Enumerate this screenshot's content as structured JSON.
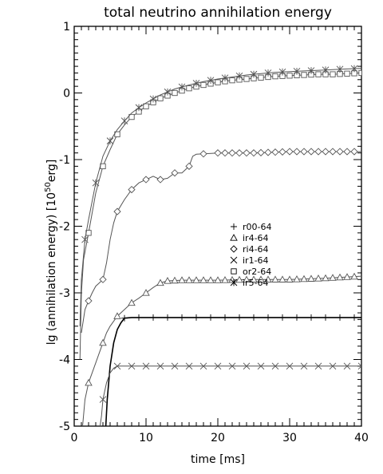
{
  "chart_data": {
    "type": "line",
    "title": "total neutrino annihilation energy",
    "xlabel": "time [ms]",
    "ylabel_prefix": "lg (annihilation energy) [10",
    "ylabel_sup": "50",
    "ylabel_suffix": "erg]",
    "xlim": [
      0,
      40
    ],
    "ylim": [
      -5,
      1
    ],
    "x_ticks": [
      "0",
      "10",
      "20",
      "30",
      "40"
    ],
    "y_ticks": [
      "-5",
      "-4",
      "-3",
      "-2",
      "-1",
      "0",
      "1"
    ],
    "grid": false,
    "legend_position": "center-right",
    "series": [
      {
        "name": "r00-64",
        "marker": "plus",
        "color": "#000000",
        "line_width": 1.6,
        "points": [
          [
            4.4,
            -5.0
          ],
          [
            4.6,
            -4.6
          ],
          [
            5.0,
            -4.1
          ],
          [
            5.5,
            -3.75
          ],
          [
            6.0,
            -3.55
          ],
          [
            6.5,
            -3.45
          ],
          [
            7.0,
            -3.38
          ],
          [
            8,
            -3.37
          ],
          [
            10,
            -3.37
          ],
          [
            15,
            -3.37
          ],
          [
            20,
            -3.37
          ],
          [
            25,
            -3.37
          ],
          [
            30,
            -3.37
          ],
          [
            35,
            -3.37
          ],
          [
            40,
            -3.37
          ]
        ],
        "marker_x": [
          7,
          9,
          11,
          13,
          15,
          17,
          19,
          21,
          23,
          25,
          27,
          29,
          31,
          33,
          35,
          37,
          39
        ]
      },
      {
        "name": "ir4-64",
        "marker": "triangle",
        "color": "#555555",
        "line_width": 1,
        "points": [
          [
            1.0,
            -5.2
          ],
          [
            1.5,
            -4.6
          ],
          [
            2.0,
            -4.35
          ],
          [
            2.5,
            -4.2
          ],
          [
            3.0,
            -4.05
          ],
          [
            3.5,
            -3.9
          ],
          [
            4.0,
            -3.75
          ],
          [
            4.5,
            -3.6
          ],
          [
            5.0,
            -3.5
          ],
          [
            6.0,
            -3.35
          ],
          [
            7.0,
            -3.25
          ],
          [
            8.0,
            -3.15
          ],
          [
            9.0,
            -3.08
          ],
          [
            10.0,
            -3.0
          ],
          [
            11.0,
            -2.92
          ],
          [
            12.0,
            -2.85
          ],
          [
            13.0,
            -2.82
          ],
          [
            15,
            -2.81
          ],
          [
            20,
            -2.81
          ],
          [
            25,
            -2.8
          ],
          [
            30,
            -2.8
          ],
          [
            35,
            -2.78
          ],
          [
            40,
            -2.75
          ]
        ],
        "marker_x": [
          2,
          4,
          6,
          8,
          10,
          12,
          13,
          14,
          15,
          16,
          17,
          18,
          19,
          20,
          21,
          22,
          23,
          24,
          25,
          26,
          27,
          28,
          29,
          30,
          31,
          32,
          33,
          34,
          35,
          36,
          37,
          38,
          39
        ]
      },
      {
        "name": "ri4-64",
        "marker": "diamond",
        "color": "#555555",
        "line_width": 1,
        "points": [
          [
            1.0,
            -3.6
          ],
          [
            1.5,
            -3.25
          ],
          [
            2.0,
            -3.12
          ],
          [
            2.5,
            -3.0
          ],
          [
            3.0,
            -2.9
          ],
          [
            3.5,
            -2.85
          ],
          [
            4.0,
            -2.8
          ],
          [
            4.5,
            -2.55
          ],
          [
            5.0,
            -2.2
          ],
          [
            5.5,
            -1.95
          ],
          [
            6.0,
            -1.78
          ],
          [
            7.0,
            -1.6
          ],
          [
            8.0,
            -1.45
          ],
          [
            9.0,
            -1.35
          ],
          [
            10.0,
            -1.3
          ],
          [
            11.0,
            -1.25
          ],
          [
            12.0,
            -1.3
          ],
          [
            13.0,
            -1.28
          ],
          [
            14.0,
            -1.2
          ],
          [
            15.0,
            -1.2
          ],
          [
            16.0,
            -1.1
          ],
          [
            16.5,
            -0.95
          ],
          [
            17.0,
            -0.92
          ],
          [
            20,
            -0.9
          ],
          [
            25,
            -0.9
          ],
          [
            30,
            -0.88
          ],
          [
            35,
            -0.88
          ],
          [
            40,
            -0.88
          ]
        ],
        "marker_x": [
          2,
          4,
          6,
          8,
          10,
          12,
          14,
          16,
          18,
          20,
          21,
          22,
          23,
          24,
          25,
          26,
          27,
          28,
          29,
          30,
          31,
          32,
          33,
          34,
          35,
          36,
          37,
          38,
          39
        ]
      },
      {
        "name": "ir1-64",
        "marker": "x",
        "color": "#555555",
        "line_width": 1,
        "points": [
          [
            3.6,
            -5.0
          ],
          [
            3.8,
            -4.85
          ],
          [
            4.0,
            -4.6
          ],
          [
            4.5,
            -4.35
          ],
          [
            5.0,
            -4.2
          ],
          [
            5.5,
            -4.13
          ],
          [
            6.0,
            -4.1
          ],
          [
            7,
            -4.1
          ],
          [
            10,
            -4.1
          ],
          [
            20,
            -4.1
          ],
          [
            30,
            -4.1
          ],
          [
            40,
            -4.1
          ]
        ],
        "marker_x": [
          4,
          6,
          8,
          10,
          12,
          14,
          16,
          18,
          20,
          22,
          24,
          26,
          28,
          30,
          32,
          34,
          36,
          38,
          40
        ]
      },
      {
        "name": "or2-64",
        "marker": "square",
        "color": "#555555",
        "line_width": 1,
        "points": [
          [
            0.8,
            -4.0
          ],
          [
            1.0,
            -3.0
          ],
          [
            1.3,
            -2.5
          ],
          [
            2.0,
            -2.1
          ],
          [
            3.0,
            -1.5
          ],
          [
            4.0,
            -1.1
          ],
          [
            5.0,
            -0.85
          ],
          [
            6.0,
            -0.62
          ],
          [
            7.0,
            -0.48
          ],
          [
            8.0,
            -0.36
          ],
          [
            9.0,
            -0.28
          ],
          [
            10.0,
            -0.2
          ],
          [
            12.0,
            -0.08
          ],
          [
            14.0,
            0.0
          ],
          [
            16.0,
            0.07
          ],
          [
            18.0,
            0.12
          ],
          [
            20.0,
            0.16
          ],
          [
            22.0,
            0.19
          ],
          [
            24.0,
            0.21
          ],
          [
            26.0,
            0.23
          ],
          [
            28.0,
            0.25
          ],
          [
            30.0,
            0.26
          ],
          [
            32.0,
            0.27
          ],
          [
            34.0,
            0.28
          ],
          [
            36.0,
            0.28
          ],
          [
            38.0,
            0.29
          ],
          [
            40.0,
            0.3
          ]
        ],
        "marker_x": [
          2,
          4,
          6,
          8,
          9,
          10,
          11,
          12,
          13,
          14,
          15,
          16,
          17,
          18,
          19,
          20,
          21,
          22,
          23,
          24,
          25,
          26,
          27,
          28,
          29,
          30,
          31,
          32,
          33,
          34,
          35,
          36,
          37,
          38,
          39,
          40
        ]
      },
      {
        "name": "ir5-64",
        "marker": "asterisk",
        "color": "#555555",
        "line_width": 1,
        "points": [
          [
            0.8,
            -3.5
          ],
          [
            1.0,
            -2.8
          ],
          [
            1.5,
            -2.2
          ],
          [
            2.0,
            -1.9
          ],
          [
            3.0,
            -1.35
          ],
          [
            4.0,
            -0.95
          ],
          [
            5.0,
            -0.72
          ],
          [
            6.0,
            -0.55
          ],
          [
            7.0,
            -0.42
          ],
          [
            8.0,
            -0.3
          ],
          [
            9.0,
            -0.22
          ],
          [
            10.0,
            -0.15
          ],
          [
            12.0,
            -0.03
          ],
          [
            14.0,
            0.06
          ],
          [
            16.0,
            0.12
          ],
          [
            18.0,
            0.17
          ],
          [
            20.0,
            0.21
          ],
          [
            22.0,
            0.24
          ],
          [
            24.0,
            0.27
          ],
          [
            26.0,
            0.29
          ],
          [
            28.0,
            0.31
          ],
          [
            30.0,
            0.32
          ],
          [
            32.0,
            0.33
          ],
          [
            34.0,
            0.34
          ],
          [
            36.0,
            0.35
          ],
          [
            38.0,
            0.36
          ],
          [
            40.0,
            0.37
          ]
        ],
        "marker_x": [
          1.5,
          3,
          5,
          7,
          9,
          11,
          13,
          15,
          17,
          19,
          21,
          23,
          25,
          27,
          29,
          31,
          33,
          35,
          37,
          39
        ]
      }
    ]
  }
}
